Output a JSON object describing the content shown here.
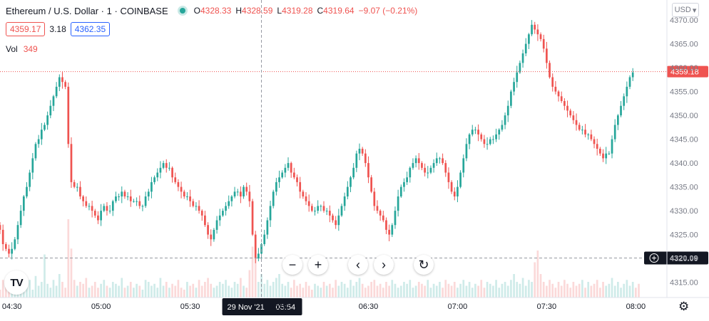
{
  "header": {
    "symbol": "Ethereum / U.S. Dollar",
    "interval": "1",
    "exchange": "COINBASE",
    "ohlc": {
      "o_label": "O",
      "o": "4328.33",
      "h_label": "H",
      "h": "4328.59",
      "l_label": "L",
      "l": "4319.28",
      "c_label": "C",
      "c": "4319.64",
      "change": "−9.07 (−0.21%)"
    }
  },
  "prices": {
    "bid": "4359.17",
    "spread": "3.18",
    "ask": "4362.35"
  },
  "volume": {
    "label": "Vol",
    "value": "349"
  },
  "currency": "USD",
  "nav": {
    "zoom_out": "−",
    "zoom_in": "+",
    "scroll_left": "‹",
    "scroll_right": "›",
    "reset": "↻"
  },
  "colors": {
    "up": "#26a69a",
    "down": "#ef5350",
    "crosshair": "#9598a1",
    "axis_text": "#787b86"
  },
  "chart_data": {
    "type": "candlestick",
    "title": "Ethereum / U.S. Dollar · 1 · COINBASE",
    "ylim": [
      4313,
      4373
    ],
    "y_ticks": [
      "4315.00",
      "4320.00",
      "4325.00",
      "4330.00",
      "4335.00",
      "4340.00",
      "4345.00",
      "4350.00",
      "4355.00",
      "4360.00",
      "4365.00",
      "4370.00"
    ],
    "x_ticks": [
      "04:30",
      "05:00",
      "05:30",
      "06:00",
      "06:30",
      "07:00",
      "07:30",
      "08:00"
    ],
    "x_range": [
      "04:26",
      "08:10"
    ],
    "last_price": "4359.18",
    "crosshair": {
      "time": "05:54",
      "date_label": "29 Nov '21",
      "time_label": "05:54",
      "price_label": "4320.09"
    },
    "close_series": {
      "start_time": "04:26",
      "interval_minutes": 1,
      "values": [
        4326,
        4323,
        4322,
        4321,
        4322,
        4324,
        4327,
        4330,
        4333,
        4335,
        4338,
        4341,
        4344,
        4345,
        4347,
        4348,
        4350,
        4352,
        4354,
        4356,
        4358,
        4357,
        4356,
        4344,
        4336,
        4335,
        4335,
        4333,
        4332,
        4331,
        4331,
        4330,
        4329,
        4328,
        4330,
        4331,
        4330,
        4330,
        4332,
        4333,
        4333,
        4334,
        4333,
        4333,
        4332,
        4332,
        4332,
        4331,
        4331,
        4333,
        4334,
        4336,
        4337,
        4338,
        4339,
        4340,
        4339,
        4339,
        4337,
        4336,
        4335,
        4334,
        4333,
        4333,
        4332,
        4331,
        4331,
        4330,
        4329,
        4327,
        4325,
        4324,
        4326,
        4328,
        4329,
        4330,
        4331,
        4332,
        4333,
        4334,
        4334,
        4333,
        4335,
        4334,
        4332,
        4325,
        4320,
        4321,
        4323,
        4325,
        4328,
        4331,
        4334,
        4336,
        4337,
        4338,
        4339,
        4340,
        4338,
        4337,
        4336,
        4334,
        4333,
        4332,
        4331,
        4330,
        4330,
        4331,
        4331,
        4330,
        4330,
        4329,
        4328,
        4327,
        4329,
        4331,
        4333,
        4335,
        4337,
        4339,
        4342,
        4343,
        4342,
        4340,
        4337,
        4334,
        4331,
        4330,
        4329,
        4328,
        4326,
        4325,
        4327,
        4330,
        4333,
        4335,
        4336,
        4337,
        4339,
        4340,
        4341,
        4340,
        4339,
        4338,
        4338,
        4339,
        4340,
        4341,
        4341,
        4340,
        4338,
        4336,
        4334,
        4333,
        4335,
        4338,
        4341,
        4344,
        4346,
        4347,
        4347,
        4346,
        4345,
        4344,
        4344,
        4345,
        4345,
        4346,
        4347,
        4348,
        4350,
        4352,
        4355,
        4357,
        4359,
        4361,
        4363,
        4365,
        4367,
        4369,
        4368,
        4367,
        4366,
        4364,
        4361,
        4358,
        4356,
        4355,
        4354,
        4353,
        4352,
        4351,
        4350,
        4349,
        4348,
        4347,
        4347,
        4346,
        4346,
        4345,
        4344,
        4343,
        4342,
        4341,
        4342,
        4342,
        4345,
        4348,
        4350,
        4352,
        4354,
        4356,
        4358,
        4359
      ]
    },
    "volume_series": {
      "values": [
        4,
        9,
        6,
        5,
        8,
        6,
        10,
        5,
        7,
        6,
        9,
        4,
        11,
        6,
        8,
        22,
        7,
        5,
        9,
        6,
        12,
        8,
        5,
        40,
        25,
        9,
        6,
        8,
        7,
        10,
        5,
        6,
        8,
        5,
        7,
        9,
        6,
        5,
        8,
        7,
        6,
        10,
        5,
        6,
        8,
        5,
        7,
        6,
        4,
        9,
        8,
        6,
        7,
        5,
        10,
        6,
        8,
        5,
        7,
        6,
        9,
        5,
        4,
        8,
        6,
        7,
        5,
        9,
        6,
        8,
        10,
        7,
        5,
        6,
        8,
        7,
        9,
        6,
        5,
        8,
        7,
        10,
        6,
        5,
        14,
        26,
        20,
        8,
        12,
        7,
        9,
        6,
        8,
        10,
        12,
        7,
        6,
        8,
        5,
        9,
        6,
        7,
        5,
        8,
        6,
        4,
        7,
        6,
        5,
        8,
        6,
        7,
        5,
        9,
        6,
        8,
        7,
        5,
        9,
        6,
        8,
        10,
        7,
        5,
        6,
        8,
        9,
        6,
        7,
        5,
        8,
        6,
        9,
        7,
        5,
        6,
        8,
        7,
        9,
        5,
        6,
        8,
        7,
        6,
        9,
        5,
        7,
        6,
        8,
        5,
        9,
        7,
        6,
        8,
        5,
        7,
        9,
        6,
        8,
        5,
        7,
        6,
        9,
        5,
        8,
        7,
        6,
        9,
        5,
        7,
        8,
        6,
        9,
        12,
        8,
        7,
        10,
        6,
        9,
        8,
        18,
        24,
        12,
        8,
        6,
        9,
        7,
        5,
        8,
        6,
        9,
        7,
        5,
        8,
        6,
        7,
        9,
        5,
        8,
        6,
        7,
        9,
        5,
        8,
        6,
        7,
        10,
        6,
        8,
        5,
        7,
        9,
        6,
        8,
        5,
        7
      ]
    }
  }
}
